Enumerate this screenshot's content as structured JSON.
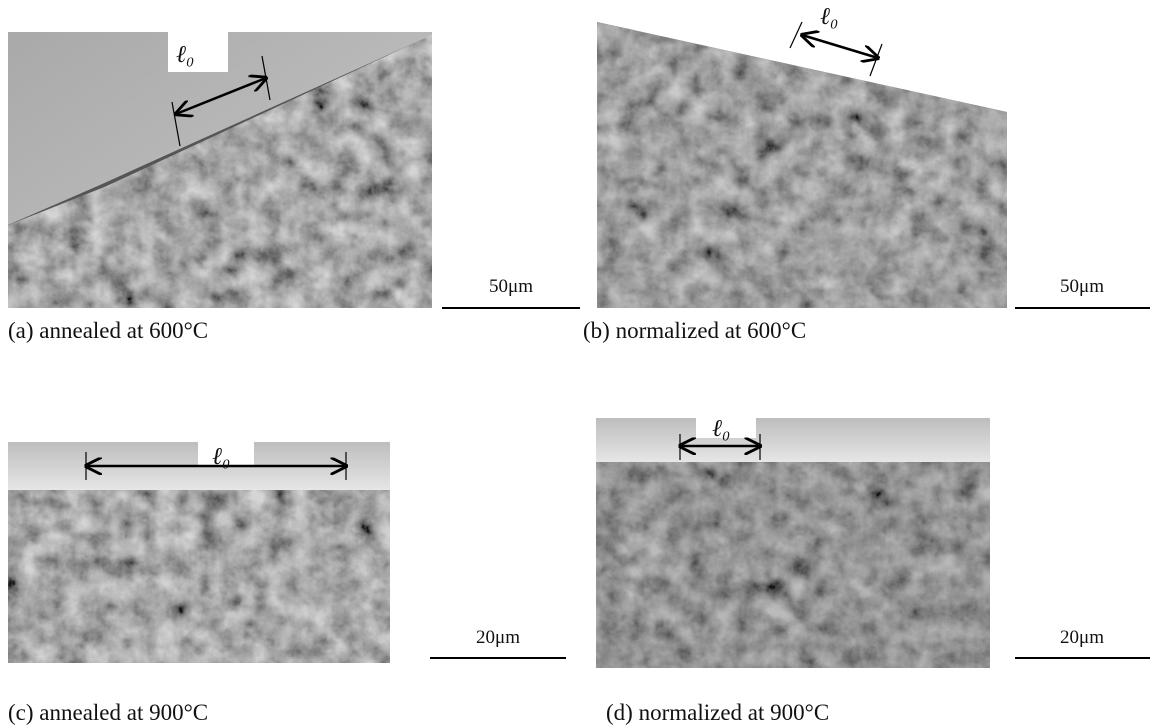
{
  "panels": [
    {
      "caption": "(a) annealed at 600°C",
      "scale_label": "50μm",
      "length_label": "ℓ₀"
    },
    {
      "caption": "(b) normalized at 600°C",
      "scale_label": "50μm",
      "length_label": "ℓ₀"
    },
    {
      "caption": "(c) annealed at 900°C",
      "scale_label": "20μm",
      "length_label": "ℓ₀"
    },
    {
      "caption": "(d) normalized at 900°C",
      "scale_label": "20μm",
      "length_label": "ℓ₀"
    }
  ]
}
